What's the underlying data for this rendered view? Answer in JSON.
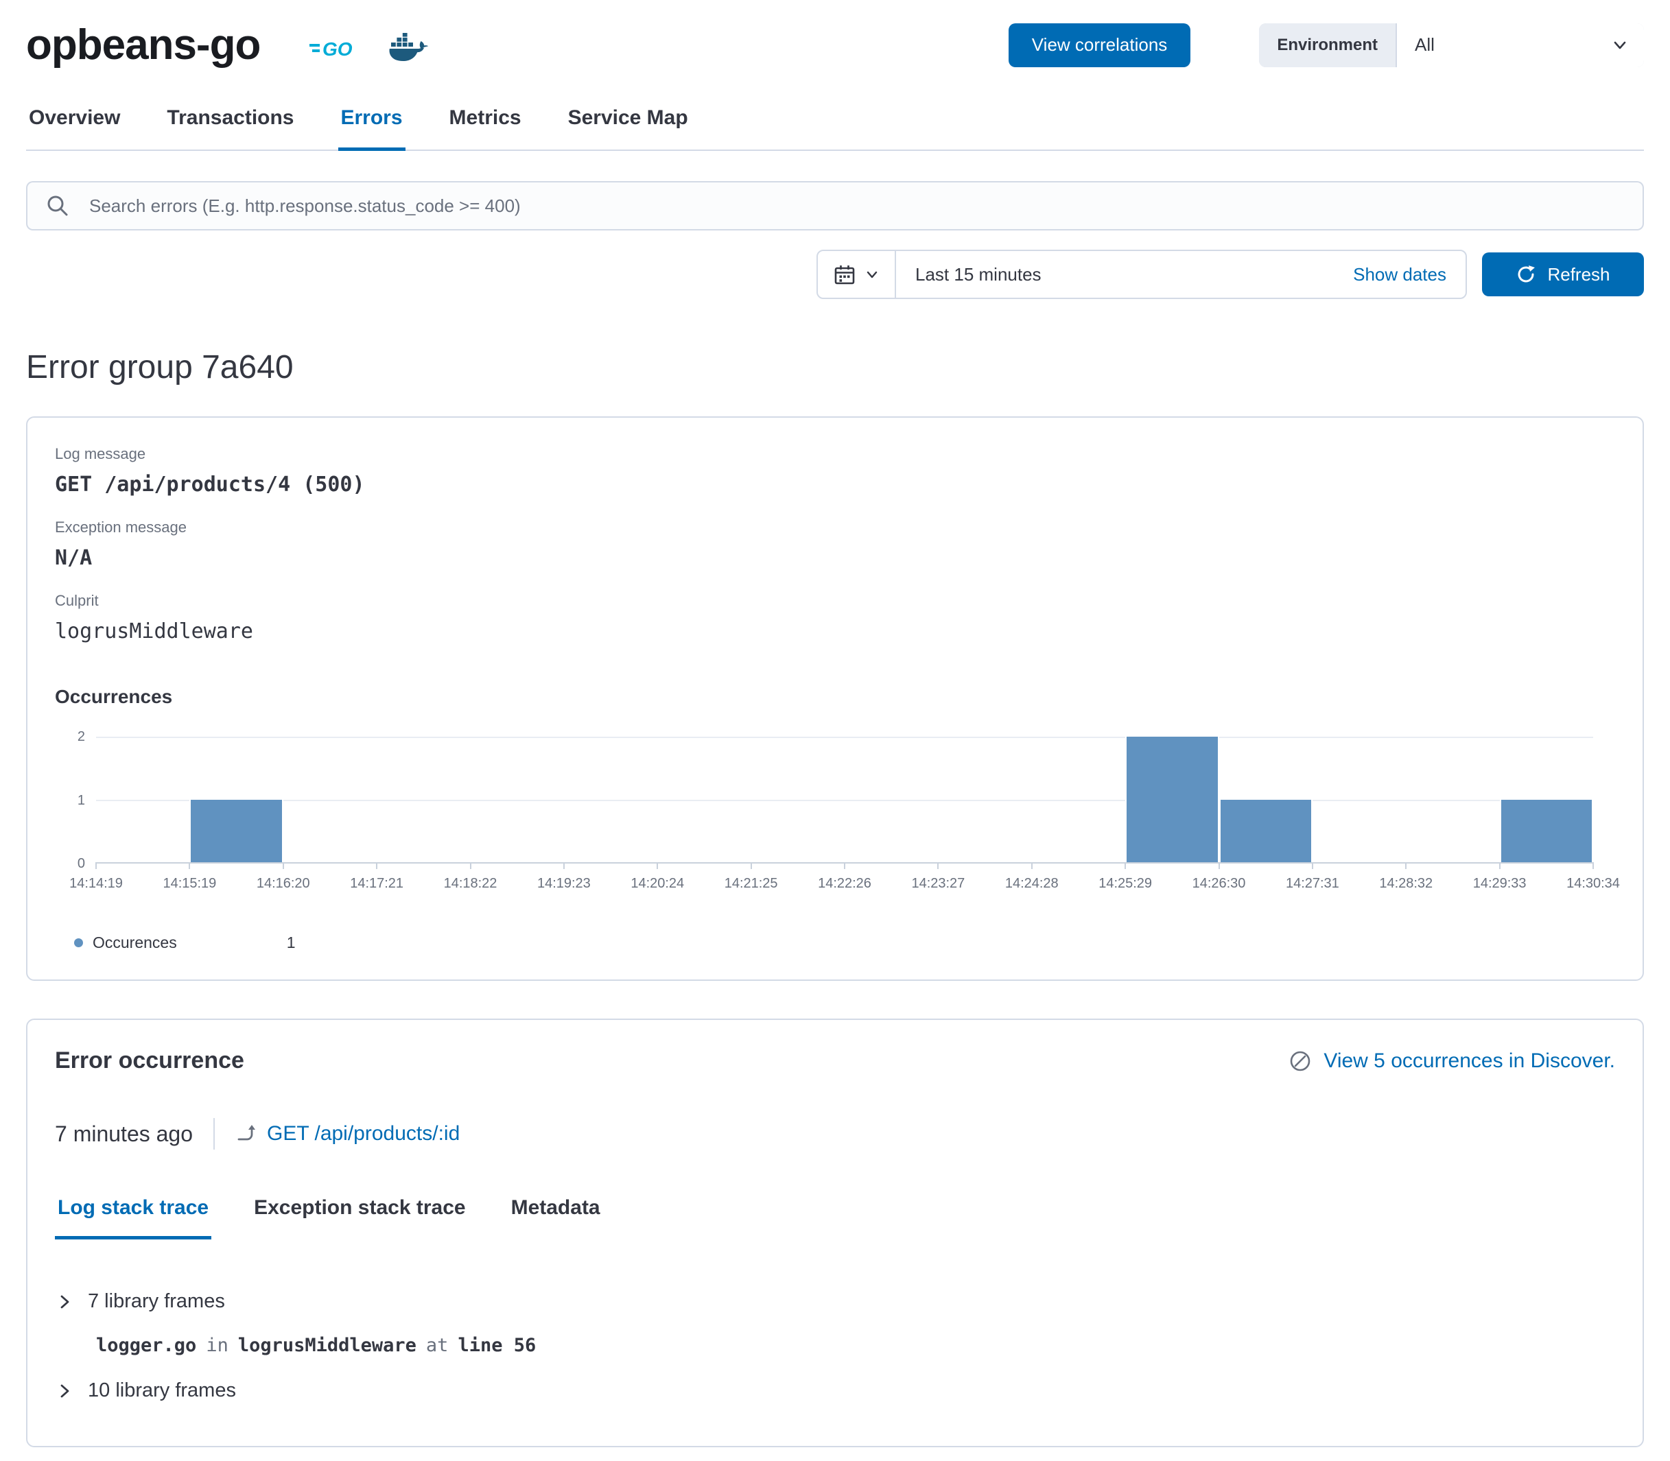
{
  "header": {
    "service_name": "opbeans-go",
    "view_correlations_label": "View correlations",
    "environment_label": "Environment",
    "environment_value": "All"
  },
  "nav_tabs": [
    {
      "label": "Overview"
    },
    {
      "label": "Transactions"
    },
    {
      "label": "Errors"
    },
    {
      "label": "Metrics"
    },
    {
      "label": "Service Map"
    }
  ],
  "search": {
    "placeholder": "Search errors (E.g. http.response.status_code >= 400)"
  },
  "time_controls": {
    "range_label": "Last 15 minutes",
    "show_dates_label": "Show dates",
    "refresh_label": "Refresh"
  },
  "page_title": "Error group 7a640",
  "error_group": {
    "log_message_label": "Log message",
    "log_message": "GET /api/products/4 (500)",
    "exception_message_label": "Exception message",
    "exception_message": "N/A",
    "culprit_label": "Culprit",
    "culprit": "logrusMiddleware",
    "occurrences_title": "Occurrences"
  },
  "chart_data": {
    "type": "bar",
    "title": "Occurrences",
    "x_labels": [
      "14:14:19",
      "14:15:19",
      "14:16:20",
      "14:17:21",
      "14:18:22",
      "14:19:23",
      "14:20:24",
      "14:21:25",
      "14:22:26",
      "14:23:27",
      "14:24:28",
      "14:25:29",
      "14:26:30",
      "14:27:31",
      "14:28:32",
      "14:29:33",
      "14:30:34"
    ],
    "values": [
      0,
      1,
      0,
      0,
      0,
      0,
      0,
      0,
      0,
      0,
      0,
      2,
      1,
      0,
      0,
      1
    ],
    "ylim": [
      0,
      2
    ],
    "y_ticks": [
      0,
      1,
      2
    ],
    "bar_color": "#6092C0",
    "grid": true,
    "legend_position": "bottom",
    "legend_label": "Occurences",
    "legend_value": "1"
  },
  "error_occurrence": {
    "title": "Error occurrence",
    "discover_link_label": "View 5 occurrences in Discover.",
    "timestamp": "7 minutes ago",
    "transaction_link_label": "GET /api/products/:id",
    "stack_tabs": [
      {
        "label": "Log stack trace"
      },
      {
        "label": "Exception stack trace"
      },
      {
        "label": "Metadata"
      }
    ],
    "library_frames_top": "7 library frames",
    "frame": {
      "file": "logger.go",
      "in_label": "in",
      "function": "logrusMiddleware",
      "at_label": "at",
      "line": "line 56"
    },
    "library_frames_bottom": "10 library frames"
  }
}
